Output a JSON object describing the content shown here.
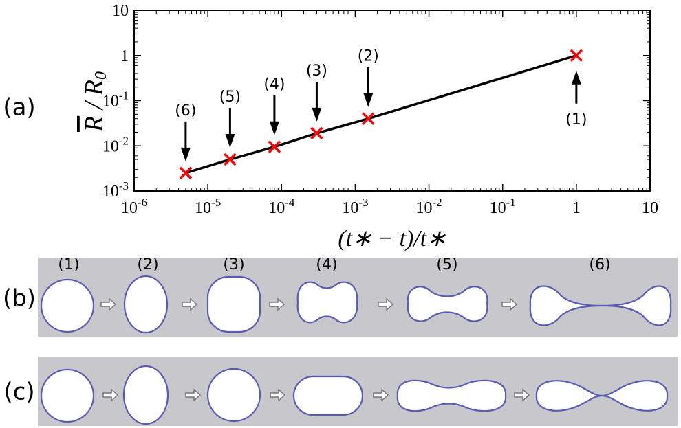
{
  "chart_data": {
    "type": "scatter",
    "panel_label": "(a)",
    "x_label": "(t∗ − t)/t∗",
    "y_label": {
      "main": "R",
      "slash": " / R",
      "sub": "0"
    },
    "log_x": true,
    "log_y": true,
    "xlim": [
      1e-06,
      10
    ],
    "ylim": [
      0.001,
      10
    ],
    "xticks": [
      {
        "value": 1e-06,
        "label": "10",
        "exponent": "-6"
      },
      {
        "value": 1e-05,
        "label": "10",
        "exponent": "-5"
      },
      {
        "value": 0.0001,
        "label": "10",
        "exponent": "-4"
      },
      {
        "value": 0.001,
        "label": "10",
        "exponent": "-3"
      },
      {
        "value": 0.01,
        "label": "10",
        "exponent": "-2"
      },
      {
        "value": 0.1,
        "label": "10",
        "exponent": "-1"
      },
      1,
      10
    ],
    "yticks": [
      {
        "value": 0.001,
        "label": "10",
        "exponent": "-3"
      },
      {
        "value": 0.01,
        "label": "10",
        "exponent": "-2"
      },
      {
        "value": 0.1,
        "label": "10",
        "exponent": "-1"
      },
      1,
      10
    ],
    "series": [
      {
        "color": "#ff0000",
        "line_color": "#000000",
        "x": [
          1,
          0.0015,
          0.0003,
          8e-05,
          2e-05,
          5e-06
        ],
        "values": [
          1,
          0.04,
          0.019,
          0.0095,
          0.005,
          0.0025
        ],
        "point_labels": [
          "(1)",
          "(2)",
          "(3)",
          "(4)",
          "(5)",
          "(6)"
        ]
      }
    ]
  },
  "panel_b": {
    "label": "(b)",
    "stage_labels": [
      "(1)",
      "(2)",
      "(3)",
      "(4)",
      "(5)",
      "(6)"
    ]
  },
  "panel_c": {
    "label": "(c)"
  }
}
